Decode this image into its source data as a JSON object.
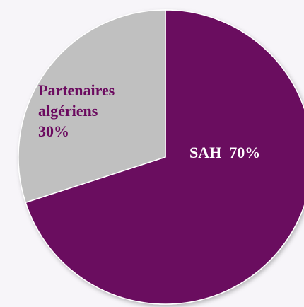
{
  "chart_data": {
    "type": "pie",
    "categories": [
      "SAH",
      "Partenaires algériens"
    ],
    "values": [
      70,
      30
    ],
    "value_labels": [
      "70%",
      "30%"
    ],
    "colors": [
      "#6b0a5f",
      "#c0c0c0"
    ],
    "start_angle": 0,
    "direction": "clockwise"
  }
}
